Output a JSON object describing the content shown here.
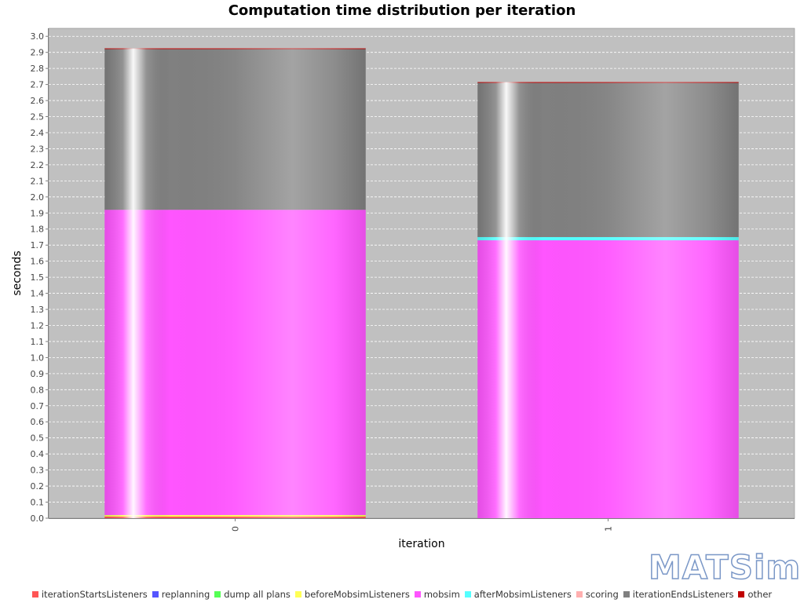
{
  "chart_data": {
    "type": "bar",
    "stacked": true,
    "title": "Computation time distribution per iteration",
    "xlabel": "iteration",
    "ylabel": "seconds",
    "categories": [
      "0",
      "1"
    ],
    "ylim": [
      0.0,
      3.05
    ],
    "ytick_step": 0.1,
    "grid": true,
    "legend_position": "bottom",
    "series": [
      {
        "name": "iterationStartsListeners",
        "color": "#ff5555",
        "values": [
          0.01,
          0.0
        ]
      },
      {
        "name": "replanning",
        "color": "#5555ff",
        "values": [
          0.0,
          0.0
        ]
      },
      {
        "name": "dump all plans",
        "color": "#55ff55",
        "values": [
          0.0,
          0.0
        ]
      },
      {
        "name": "beforeMobsimListeners",
        "color": "#ffff55",
        "values": [
          0.01,
          0.0
        ]
      },
      {
        "name": "mobsim",
        "color": "#ff55ff",
        "values": [
          1.9,
          1.73
        ]
      },
      {
        "name": "afterMobsimListeners",
        "color": "#55ffff",
        "values": [
          0.0,
          0.02
        ]
      },
      {
        "name": "scoring",
        "color": "#ffafaf",
        "values": [
          0.0,
          0.0
        ]
      },
      {
        "name": "iterationEndsListeners",
        "color": "#808080",
        "values": [
          1.0,
          0.96
        ]
      },
      {
        "name": "other",
        "color": "#c00000",
        "values": [
          0.005,
          0.005
        ]
      }
    ]
  },
  "logo_text": "MATSim"
}
